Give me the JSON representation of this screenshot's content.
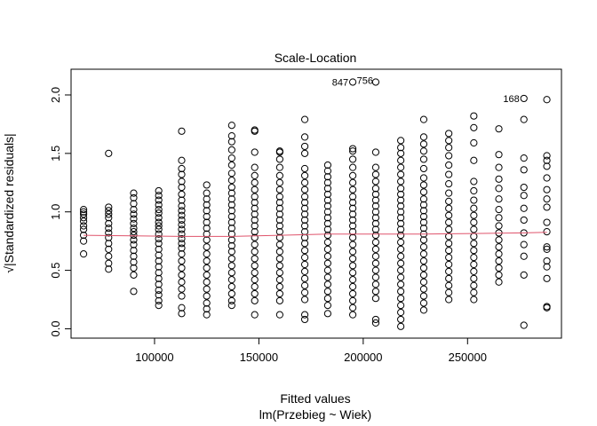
{
  "chart_data": {
    "type": "scatter",
    "title": "Scale-Location",
    "xlabel": "Fitted values",
    "xlabel_sub": "lm(Przebieg ~ Wiek)",
    "ylabel": "√|Standardized residuals|",
    "xlim": [
      60000,
      295000
    ],
    "ylim": [
      -0.08,
      2.22
    ],
    "x_ticks": [
      100000,
      150000,
      200000,
      250000
    ],
    "y_ticks": [
      0.0,
      0.5,
      1.0,
      1.5,
      2.0
    ],
    "x_tick_labels": [
      "100000",
      "150000",
      "200000",
      "250000"
    ],
    "y_tick_labels": [
      "0.0",
      "0.5",
      "1.0",
      "1.5",
      "2.0"
    ],
    "marker": "open-circle",
    "point_color": "#000000",
    "smooth_color": "#df536b",
    "columns": [
      {
        "x": 66000,
        "y": [
          0.64,
          0.75,
          0.8,
          0.85,
          0.88,
          0.92,
          0.95,
          0.98,
          1.0,
          1.02
        ]
      },
      {
        "x": 78000,
        "y": [
          0.51,
          0.56,
          0.62,
          0.68,
          0.73,
          0.78,
          0.82,
          0.86,
          0.9,
          0.95,
          0.98,
          1.01,
          1.04,
          1.5
        ]
      },
      {
        "x": 90000,
        "y": [
          0.32,
          0.46,
          0.52,
          0.57,
          0.62,
          0.67,
          0.72,
          0.76,
          0.8,
          0.83,
          0.86,
          0.9,
          0.94,
          0.98,
          1.02,
          1.07,
          1.12,
          1.16
        ]
      },
      {
        "x": 102000,
        "y": [
          0.2,
          0.24,
          0.29,
          0.33,
          0.38,
          0.43,
          0.48,
          0.53,
          0.58,
          0.63,
          0.68,
          0.73,
          0.77,
          0.81,
          0.85,
          0.88,
          0.91,
          0.95,
          0.99,
          1.02,
          1.06,
          1.1,
          1.14,
          1.18
        ]
      },
      {
        "x": 113000,
        "y": [
          0.13,
          0.18,
          0.28,
          0.34,
          0.4,
          0.46,
          0.52,
          0.58,
          0.64,
          0.69,
          0.73,
          0.77,
          0.81,
          0.85,
          0.89,
          0.93,
          0.97,
          1.01,
          1.05,
          1.1,
          1.15,
          1.21,
          1.26,
          1.32,
          1.37,
          1.44,
          1.69
        ]
      },
      {
        "x": 125000,
        "y": [
          0.12,
          0.17,
          0.22,
          0.28,
          0.34,
          0.4,
          0.46,
          0.52,
          0.58,
          0.64,
          0.7,
          0.76,
          0.81,
          0.86,
          0.91,
          0.96,
          1.01,
          1.06,
          1.11,
          1.16,
          1.23
        ]
      },
      {
        "x": 137000,
        "y": [
          0.2,
          0.24,
          0.3,
          0.36,
          0.42,
          0.48,
          0.54,
          0.6,
          0.66,
          0.71,
          0.76,
          0.81,
          0.86,
          0.91,
          0.96,
          1.01,
          1.06,
          1.11,
          1.16,
          1.21,
          1.27,
          1.33,
          1.4,
          1.46,
          1.53,
          1.6,
          1.65,
          1.74
        ]
      },
      {
        "x": 148000,
        "y": [
          0.12,
          0.24,
          0.3,
          0.36,
          0.42,
          0.48,
          0.54,
          0.6,
          0.66,
          0.72,
          0.78,
          0.83,
          0.88,
          0.93,
          0.98,
          1.03,
          1.08,
          1.13,
          1.19,
          1.25,
          1.31,
          1.38,
          1.51,
          1.69,
          1.7
        ]
      },
      {
        "x": 160000,
        "y": [
          0.12,
          0.24,
          0.3,
          0.36,
          0.42,
          0.48,
          0.54,
          0.6,
          0.66,
          0.72,
          0.78,
          0.83,
          0.88,
          0.93,
          0.98,
          1.03,
          1.08,
          1.13,
          1.19,
          1.25,
          1.31,
          1.38,
          1.45,
          1.51,
          1.52
        ]
      },
      {
        "x": 172000,
        "y": [
          0.08,
          0.12,
          0.25,
          0.31,
          0.37,
          0.43,
          0.49,
          0.55,
          0.61,
          0.67,
          0.73,
          0.78,
          0.83,
          0.88,
          0.93,
          0.98,
          1.03,
          1.08,
          1.13,
          1.19,
          1.25,
          1.31,
          1.37,
          1.5,
          1.56,
          1.64,
          1.79
        ]
      },
      {
        "x": 183000,
        "y": [
          0.13,
          0.2,
          0.26,
          0.32,
          0.38,
          0.44,
          0.5,
          0.56,
          0.62,
          0.68,
          0.74,
          0.8,
          0.85,
          0.9,
          0.95,
          1.0,
          1.05,
          1.1,
          1.15,
          1.2,
          1.25,
          1.3,
          1.35,
          1.4
        ]
      },
      {
        "x": 195000,
        "y": [
          0.12,
          0.18,
          0.24,
          0.3,
          0.36,
          0.42,
          0.48,
          0.54,
          0.6,
          0.66,
          0.72,
          0.78,
          0.83,
          0.88,
          0.93,
          0.98,
          1.03,
          1.08,
          1.13,
          1.19,
          1.25,
          1.31,
          1.38,
          1.45,
          1.52,
          1.54
        ]
      },
      {
        "x": 206000,
        "y": [
          0.05,
          0.08,
          0.26,
          0.32,
          0.38,
          0.44,
          0.5,
          0.56,
          0.62,
          0.68,
          0.74,
          0.8,
          0.85,
          0.9,
          0.95,
          1.0,
          1.05,
          1.1,
          1.15,
          1.2,
          1.26,
          1.32,
          1.38,
          1.51
        ]
      },
      {
        "x": 218000,
        "y": [
          0.02,
          0.08,
          0.14,
          0.2,
          0.26,
          0.32,
          0.38,
          0.44,
          0.5,
          0.56,
          0.62,
          0.68,
          0.74,
          0.8,
          0.85,
          0.9,
          0.95,
          1.0,
          1.05,
          1.1,
          1.15,
          1.2,
          1.26,
          1.32,
          1.38,
          1.44,
          1.5,
          1.55,
          1.61
        ]
      },
      {
        "x": 229000,
        "y": [
          0.16,
          0.22,
          0.28,
          0.34,
          0.4,
          0.46,
          0.52,
          0.58,
          0.64,
          0.7,
          0.76,
          0.81,
          0.86,
          0.91,
          0.96,
          1.01,
          1.06,
          1.11,
          1.17,
          1.23,
          1.29,
          1.37,
          1.45,
          1.52,
          1.58,
          1.64,
          1.79
        ]
      },
      {
        "x": 241000,
        "y": [
          0.25,
          0.31,
          0.37,
          0.43,
          0.49,
          0.55,
          0.61,
          0.67,
          0.73,
          0.79,
          0.85,
          0.91,
          0.97,
          1.03,
          1.09,
          1.16,
          1.24,
          1.32,
          1.4,
          1.48,
          1.55,
          1.61,
          1.67
        ]
      },
      {
        "x": 253000,
        "y": [
          0.25,
          0.31,
          0.37,
          0.43,
          0.49,
          0.55,
          0.61,
          0.67,
          0.73,
          0.79,
          0.85,
          0.91,
          0.97,
          1.03,
          1.1,
          1.18,
          1.26,
          1.44,
          1.59,
          1.72,
          1.82
        ]
      },
      {
        "x": 265000,
        "y": [
          0.4,
          0.46,
          0.52,
          0.58,
          0.64,
          0.7,
          0.76,
          0.82,
          0.88,
          0.95,
          1.02,
          1.11,
          1.2,
          1.28,
          1.38,
          1.49,
          1.71
        ]
      },
      {
        "x": 277000,
        "y": [
          0.03,
          0.46,
          0.62,
          0.72,
          0.82,
          0.93,
          1.03,
          1.14,
          1.21,
          1.36,
          1.46,
          1.79
        ]
      },
      {
        "x": 288000,
        "y": [
          0.18,
          0.19,
          0.43,
          0.53,
          0.58,
          0.68,
          0.7,
          0.83,
          0.91,
          1.04,
          1.11,
          1.19,
          1.29,
          1.39,
          1.44,
          1.48,
          1.96
        ]
      }
    ],
    "labeled_points": [
      {
        "x": 195000,
        "y": 2.11,
        "label": "847",
        "side": "left"
      },
      {
        "x": 206000,
        "y": 2.11,
        "label": "756",
        "side": "top-left"
      },
      {
        "x": 277000,
        "y": 1.97,
        "label": "168",
        "side": "left"
      }
    ],
    "smooth_line": {
      "x": [
        66000,
        90000,
        113000,
        137000,
        160000,
        183000,
        206000,
        229000,
        253000,
        277000,
        288000
      ],
      "y": [
        0.8,
        0.795,
        0.79,
        0.79,
        0.8,
        0.81,
        0.81,
        0.81,
        0.815,
        0.82,
        0.825
      ]
    },
    "grid": false
  }
}
